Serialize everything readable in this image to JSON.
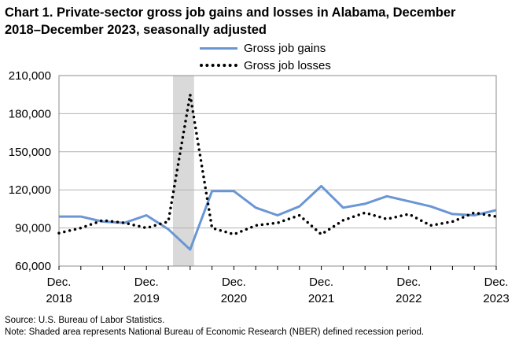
{
  "title_line1": "Chart 1. Private-sector gross job gains and losses in Alabama, December",
  "title_line2": "2018–December 2023, seasonally adjusted",
  "source": "Source: U.S. Bureau of Labor Statistics.",
  "note": "Note: Shaded area represents National Bureau of Economic Research (NBER) defined  recession period.",
  "chart_data": {
    "type": "line",
    "x": [
      "Dec. 2018",
      "Mar. 2019",
      "Jun. 2019",
      "Sep. 2019",
      "Dec. 2019",
      "Mar. 2020",
      "Jun. 2020",
      "Sep. 2020",
      "Dec. 2020",
      "Mar. 2021",
      "Jun. 2021",
      "Sep. 2021",
      "Dec. 2021",
      "Mar. 2022",
      "Jun. 2022",
      "Sep. 2022",
      "Dec. 2022",
      "Mar. 2023",
      "Jun. 2023",
      "Sep. 2023",
      "Dec. 2023"
    ],
    "x_tick_labels": [
      {
        "month": "Dec.",
        "year": "2018",
        "index": 0
      },
      {
        "month": "Dec.",
        "year": "2019",
        "index": 4
      },
      {
        "month": "Dec.",
        "year": "2020",
        "index": 8
      },
      {
        "month": "Dec.",
        "year": "2021",
        "index": 12
      },
      {
        "month": "Dec.",
        "year": "2022",
        "index": 16
      },
      {
        "month": "Dec.",
        "year": "2023",
        "index": 20
      }
    ],
    "y_ticks": [
      60000,
      90000,
      120000,
      150000,
      180000,
      210000
    ],
    "y_tick_labels": [
      "60,000",
      "90,000",
      "120,000",
      "150,000",
      "180,000",
      "210,000"
    ],
    "ylim": [
      60000,
      210000
    ],
    "recession": {
      "start_index": 5,
      "end_index": 6
    },
    "series": [
      {
        "name": "Gross job gains",
        "style": "solid",
        "color": "#6a96d4",
        "values": [
          99000,
          99000,
          95000,
          94000,
          100000,
          89000,
          73000,
          119000,
          119000,
          106000,
          100000,
          107000,
          123000,
          106000,
          109000,
          115000,
          111000,
          107000,
          101000,
          100000,
          104000
        ]
      },
      {
        "name": "Gross job losses",
        "style": "dotted",
        "color": "#000000",
        "values": [
          86000,
          90000,
          96000,
          94000,
          90000,
          95000,
          195000,
          90000,
          85000,
          92000,
          94000,
          100000,
          85000,
          96000,
          102000,
          97000,
          101000,
          92000,
          95000,
          102000,
          99000
        ]
      }
    ],
    "legend_position": "top-center",
    "grid": true
  }
}
